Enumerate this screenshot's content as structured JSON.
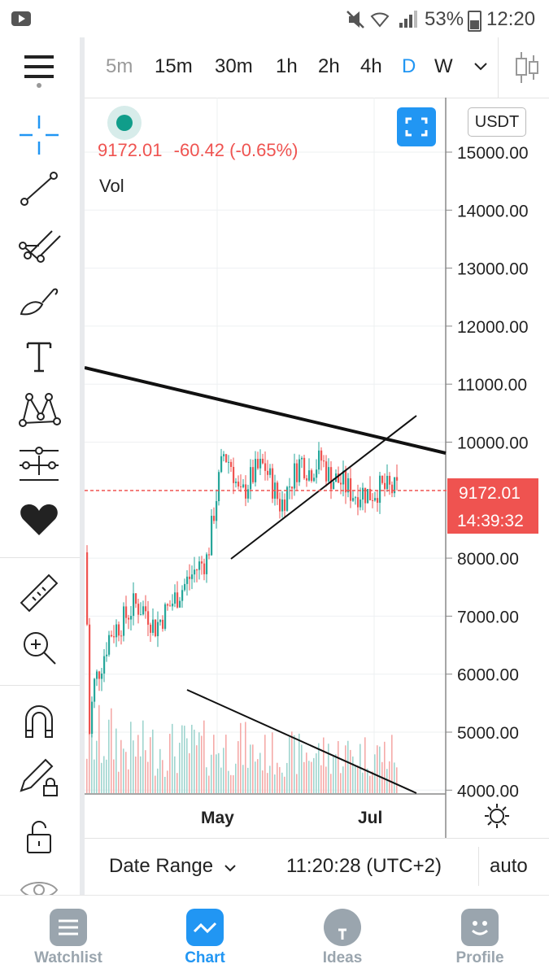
{
  "status_bar": {
    "battery": "53%",
    "time": "12:20"
  },
  "toolbar": {
    "timeframes": [
      {
        "label": "5m",
        "state": "dim"
      },
      {
        "label": "15m",
        "state": "normal"
      },
      {
        "label": "30m",
        "state": "normal"
      },
      {
        "label": "1h",
        "state": "normal"
      },
      {
        "label": "2h",
        "state": "normal"
      },
      {
        "label": "4h",
        "state": "normal"
      },
      {
        "label": "D",
        "state": "selected"
      },
      {
        "label": "W",
        "state": "normal"
      }
    ]
  },
  "left_tools": [
    "crosshair-icon",
    "trend-line-icon",
    "pitchfork-icon",
    "brush-icon",
    "text-icon",
    "pattern-icon",
    "prediction-icon",
    "favorites-icon",
    "ruler-icon",
    "zoom-in-icon",
    "magnet-icon",
    "lock-drawing-icon",
    "lock-icon",
    "eye-icon"
  ],
  "chart": {
    "currency": "USDT",
    "last_price": "9172.01",
    "change": "-60.42 (-0.65%)",
    "volume_label": "Vol",
    "price_label": "9172.01",
    "countdown": "14:39:32",
    "y_ticks": [
      "15000.00",
      "14000.00",
      "13000.00",
      "12000.00",
      "11000.00",
      "10000.00",
      "8000.00",
      "7000.00",
      "6000.00",
      "5000.00",
      "4000.00"
    ],
    "x_ticks": [
      "May",
      "Jul"
    ],
    "colors": {
      "up": "#26a69a",
      "down": "#ef5350",
      "price_line": "#ef5350"
    }
  },
  "bottom_bar": {
    "date_range": "Date Range",
    "time": "11:20:28 (UTC+2)",
    "auto": "auto"
  },
  "nav": [
    {
      "label": "Watchlist",
      "icon": "watchlist-icon",
      "active": false
    },
    {
      "label": "Chart",
      "icon": "chart-icon",
      "active": true
    },
    {
      "label": "Ideas",
      "icon": "ideas-icon",
      "active": false
    },
    {
      "label": "Profile",
      "icon": "profile-icon",
      "active": false
    }
  ]
}
